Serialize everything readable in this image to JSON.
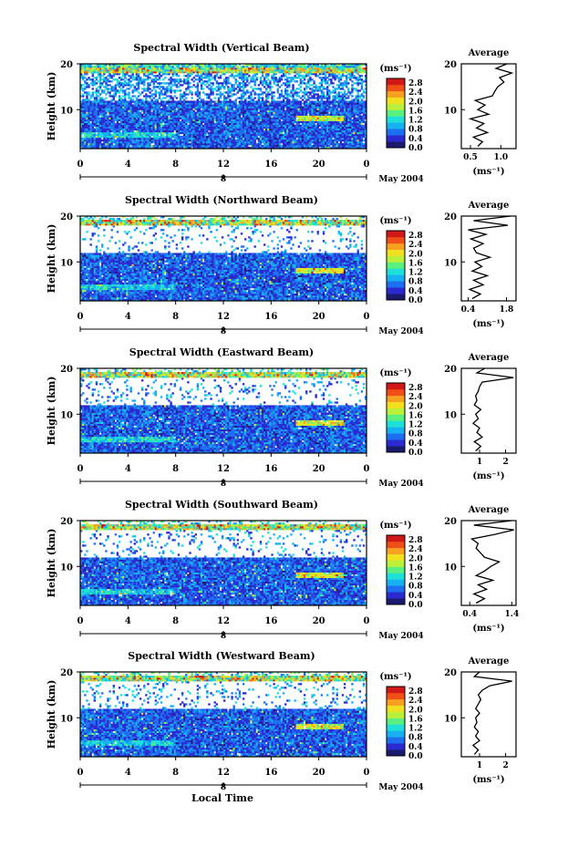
{
  "chart_data": {
    "type": "heatmap",
    "colorbar": {
      "unit_label": "(ms⁻¹)",
      "ticks": [
        "0.0",
        "0.4",
        "0.8",
        "1.2",
        "1.6",
        "2.0",
        "2.4",
        "2.8"
      ],
      "range": [
        0.0,
        3.0
      ],
      "colors": [
        "#1a1a6e",
        "#2a2ad0",
        "#1e6ef0",
        "#17b0f0",
        "#1ee0d8",
        "#5af080",
        "#b8f03a",
        "#f0e020",
        "#f8a020",
        "#f05018",
        "#d01818"
      ]
    },
    "x_ticks": [
      "0",
      "4",
      "8",
      "12",
      "16",
      "20",
      "0"
    ],
    "x_range": [
      0,
      24
    ],
    "date_center": "8",
    "date_label": "May 2004",
    "y_ticks": [
      "10",
      "20"
    ],
    "y_label": "Height (km)",
    "x_axis_label": "Local Time",
    "avg_title": "Average",
    "avg_unit": "(ms⁻¹)",
    "panels": [
      {
        "title": "Spectral Width (Vertical Beam)",
        "avg_ticks": [
          "0.5",
          "1.0"
        ],
        "avg_range": [
          0.35,
          1.25
        ],
        "avg_profile": {
          "heights": [
            2,
            3,
            4,
            5,
            6,
            7,
            8,
            9,
            10,
            11,
            12,
            13,
            14,
            15,
            16,
            17,
            18,
            19,
            20
          ],
          "values": [
            0.62,
            0.7,
            0.55,
            0.78,
            0.6,
            0.72,
            0.5,
            0.8,
            0.62,
            0.74,
            0.58,
            0.86,
            0.9,
            0.95,
            1.05,
            0.98,
            1.18,
            0.92,
            1.1
          ]
        }
      },
      {
        "title": "Spectral Width (Northward Beam)",
        "avg_ticks": [
          "0.4",
          "1.8"
        ],
        "avg_range": [
          0.15,
          2.15
        ],
        "avg_profile": {
          "heights": [
            2,
            3,
            4,
            5,
            6,
            7,
            8,
            9,
            10,
            11,
            12,
            13,
            14,
            15,
            16,
            17,
            18,
            19,
            20
          ],
          "values": [
            0.55,
            0.85,
            0.45,
            0.95,
            0.6,
            1.1,
            0.55,
            0.9,
            0.65,
            1.2,
            0.7,
            0.6,
            0.95,
            0.5,
            1.05,
            0.4,
            1.85,
            0.6,
            1.95
          ]
        }
      },
      {
        "title": "Spectral Width (Eastward Beam)",
        "avg_ticks": [
          "1",
          "2"
        ],
        "avg_range": [
          0.3,
          2.4
        ],
        "avg_profile": {
          "heights": [
            2,
            3,
            4,
            5,
            6,
            7,
            8,
            9,
            10,
            11,
            12,
            13,
            14,
            15,
            16,
            17,
            18,
            19,
            20
          ],
          "values": [
            0.85,
            1.05,
            0.8,
            1.1,
            0.9,
            1.0,
            0.75,
            0.95,
            0.85,
            1.05,
            0.8,
            0.9,
            0.85,
            0.95,
            1.0,
            1.1,
            2.3,
            0.9,
            1.2
          ]
        }
      },
      {
        "title": "Spectral Width (Southward Beam)",
        "avg_ticks": [
          "0.4",
          "1.4"
        ],
        "avg_range": [
          0.2,
          1.5
        ],
        "avg_profile": {
          "heights": [
            2,
            3,
            4,
            5,
            6,
            7,
            8,
            9,
            10,
            11,
            12,
            13,
            14,
            15,
            16,
            17,
            18,
            19,
            20
          ],
          "values": [
            0.55,
            0.75,
            0.5,
            0.8,
            0.6,
            0.95,
            0.55,
            0.75,
            0.9,
            1.1,
            0.75,
            0.65,
            0.55,
            0.6,
            0.45,
            1.0,
            1.45,
            0.5,
            1.4
          ]
        }
      },
      {
        "title": "Spectral Width (Westward Beam)",
        "avg_ticks": [
          "1",
          "2"
        ],
        "avg_range": [
          0.3,
          2.4
        ],
        "avg_profile": {
          "heights": [
            2,
            3,
            4,
            5,
            6,
            7,
            8,
            9,
            10,
            11,
            12,
            13,
            14,
            15,
            16,
            17,
            18,
            19,
            20
          ],
          "values": [
            0.8,
            0.95,
            0.75,
            1.0,
            0.85,
            0.95,
            0.8,
            0.9,
            0.85,
            1.0,
            0.85,
            0.95,
            1.05,
            0.95,
            1.1,
            1.4,
            2.25,
            0.8,
            1.0
          ]
        }
      }
    ]
  }
}
